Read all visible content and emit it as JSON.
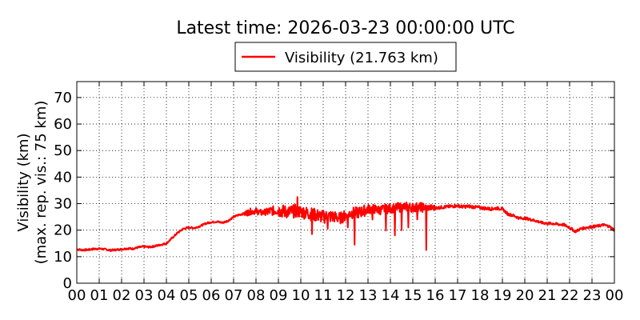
{
  "chart_data": {
    "type": "line",
    "title": "Latest time: 2026-03-23 00:00:00 UTC",
    "ylabel_line1": "Visibility (km)",
    "ylabel_line2": "(max. rep. vis.: 75 km)",
    "xlabel": "",
    "xlim": [
      0,
      24
    ],
    "ylim": [
      0,
      76
    ],
    "x_ticks": [
      "00",
      "01",
      "02",
      "03",
      "04",
      "05",
      "06",
      "07",
      "08",
      "09",
      "10",
      "11",
      "12",
      "13",
      "14",
      "15",
      "16",
      "17",
      "18",
      "19",
      "20",
      "21",
      "22",
      "23",
      "00"
    ],
    "y_ticks": [
      0,
      10,
      20,
      30,
      40,
      50,
      60,
      70
    ],
    "grid": true,
    "legend_position": "top-center",
    "series": [
      {
        "name": "Visibility (21.763 km)",
        "color": "#ff0000",
        "x": [
          0.0,
          0.25,
          0.5,
          0.75,
          1.0,
          1.25,
          1.5,
          1.75,
          2.0,
          2.25,
          2.5,
          2.75,
          3.0,
          3.25,
          3.5,
          3.75,
          4.0,
          4.25,
          4.5,
          4.75,
          5.0,
          5.25,
          5.5,
          5.75,
          6.0,
          6.25,
          6.5,
          6.75,
          7.0,
          7.25,
          7.5,
          7.75,
          8.0,
          8.25,
          8.5,
          8.75,
          9.0,
          9.25,
          9.5,
          9.75,
          10.0,
          10.25,
          10.5,
          10.75,
          11.0,
          11.25,
          11.5,
          11.75,
          12.0,
          12.25,
          12.5,
          12.75,
          13.0,
          13.25,
          13.5,
          13.75,
          14.0,
          14.25,
          14.5,
          14.75,
          15.0,
          15.25,
          15.5,
          15.75,
          16.0,
          16.25,
          16.5,
          16.75,
          17.0,
          17.25,
          17.5,
          17.75,
          18.0,
          18.25,
          18.5,
          18.75,
          19.0,
          19.25,
          19.5,
          19.75,
          20.0,
          20.25,
          20.5,
          20.75,
          21.0,
          21.25,
          21.5,
          21.75,
          22.0,
          22.25,
          22.5,
          22.75,
          23.0,
          23.25,
          23.5,
          23.75,
          24.0
        ],
        "values": [
          12.8,
          12.5,
          12.6,
          12.9,
          13.0,
          12.8,
          12.4,
          12.6,
          12.8,
          13.1,
          13.0,
          13.5,
          13.8,
          13.6,
          14.0,
          14.5,
          15.0,
          17.0,
          19.0,
          20.5,
          21.0,
          20.8,
          21.5,
          22.5,
          23.0,
          23.2,
          22.8,
          23.5,
          25.0,
          25.8,
          26.3,
          27.0,
          27.2,
          26.5,
          27.0,
          27.3,
          27.5,
          27.0,
          26.8,
          27.2,
          27.0,
          26.5,
          26.0,
          25.5,
          25.0,
          25.2,
          25.0,
          24.5,
          25.5,
          26.5,
          26.5,
          27.0,
          28.0,
          28.0,
          27.5,
          28.0,
          28.2,
          28.5,
          28.6,
          28.8,
          28.5,
          28.7,
          28.5,
          28.5,
          28.3,
          28.6,
          28.8,
          29.0,
          29.2,
          28.8,
          29.0,
          28.7,
          28.5,
          28.2,
          28.0,
          28.3,
          28.0,
          26.0,
          25.5,
          24.5,
          24.5,
          24.0,
          23.5,
          22.8,
          22.5,
          22.5,
          22.2,
          22.0,
          21.0,
          19.5,
          20.5,
          21.0,
          21.3,
          21.5,
          22.0,
          21.5,
          20.0
        ],
        "noise_amplitude_by_x": [
          [
            7.5,
            1.2
          ],
          [
            8.5,
            1.8
          ],
          [
            9.0,
            2.5
          ],
          [
            11.5,
            2.2
          ],
          [
            13.0,
            1.8
          ],
          [
            15.5,
            1.2
          ],
          [
            16.0,
            0.6
          ],
          [
            19.0,
            0.5
          ]
        ],
        "dips": [
          [
            9.85,
            32.5
          ],
          [
            10.5,
            18.5
          ],
          [
            11.2,
            20.5
          ],
          [
            12.1,
            21.0
          ],
          [
            12.4,
            14.5
          ],
          [
            13.2,
            24.0
          ],
          [
            13.8,
            19.8
          ],
          [
            14.2,
            18.0
          ],
          [
            14.5,
            20.0
          ],
          [
            14.8,
            21.0
          ],
          [
            15.2,
            24.0
          ],
          [
            15.6,
            12.5
          ]
        ]
      }
    ]
  }
}
